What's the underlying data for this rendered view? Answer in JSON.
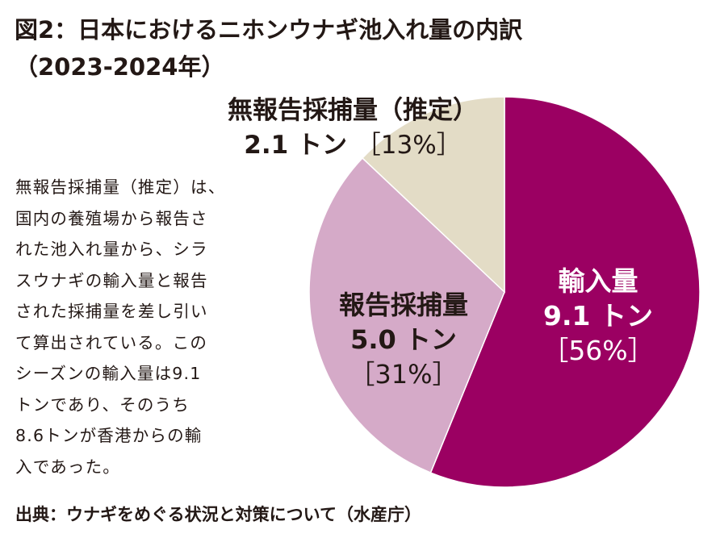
{
  "title_line1": "図2：日本におけるニホンウナギ池入れ量の内訳",
  "title_line2": "（2023-2024年）",
  "note": "無報告採捕量（推定）は、\n国内の養殖場から報告さ\nれた池入れ量から、シラ\nスウナギの輸入量と報告\nされた採捕量を差し引い\nて算出されている。この\nシーズンの輸入量は9.1\nトンであり、そのうち\n8.6トンが香港からの輸\n入であった。",
  "source": "出典：ウナギをめぐる状況と対策について（水産庁）",
  "chart_data": {
    "type": "pie",
    "title": "日本におけるニホンウナギ池入れ量の内訳（2023-2024年）",
    "unit": "トン",
    "start": "12 o'clock",
    "direction": "clockwise",
    "slices": [
      {
        "name": "輸入量",
        "value": 9.1,
        "value_label": "9.1 トン",
        "percent_label": "［56%］",
        "color": "#9b0062",
        "text_color": "#ffffff"
      },
      {
        "name": "報告採捕量",
        "value": 5.0,
        "value_label": "5.0 トン",
        "percent_label": "［31%］",
        "color": "#d5aac8",
        "text_color": "#231815"
      },
      {
        "name": "無報告採捕量（推定）",
        "value": 2.1,
        "value_label": "2.1 トン",
        "percent_label": "［13%］",
        "color": "#e3dcc6",
        "text_color": "#231815"
      }
    ]
  }
}
